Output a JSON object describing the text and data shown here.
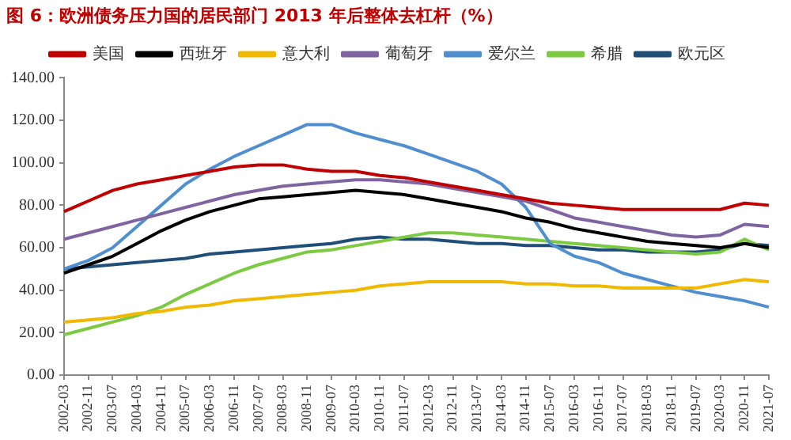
{
  "chart_data": {
    "type": "line",
    "title": "图 6：欧洲债务压力国的居民部门 2013 年后整体去杠杆（%）",
    "categories": [
      "2002-03",
      "2002-11",
      "2003-07",
      "2004-03",
      "2004-11",
      "2005-07",
      "2006-03",
      "2006-11",
      "2007-07",
      "2008-03",
      "2008-11",
      "2009-07",
      "2010-03",
      "2010-11",
      "2011-07",
      "2012-03",
      "2012-11",
      "2013-07",
      "2014-03",
      "2014-11",
      "2015-07",
      "2016-03",
      "2016-11",
      "2017-07",
      "2018-03",
      "2018-11",
      "2019-07",
      "2020-03",
      "2020-11",
      "2021-07"
    ],
    "series": [
      {
        "name": "美国",
        "color": "#c00000",
        "values": [
          77,
          82,
          87,
          90,
          92,
          94,
          96,
          98,
          99,
          99,
          97,
          96,
          96,
          94,
          93,
          91,
          89,
          87,
          85,
          83,
          81,
          80,
          79,
          78,
          78,
          78,
          78,
          78,
          81,
          80
        ]
      },
      {
        "name": "西班牙",
        "color": "#000000",
        "values": [
          48,
          52,
          56,
          62,
          68,
          73,
          77,
          80,
          83,
          84,
          85,
          86,
          87,
          86,
          85,
          83,
          81,
          79,
          77,
          74,
          72,
          69,
          67,
          65,
          63,
          62,
          61,
          60,
          62,
          60
        ]
      },
      {
        "name": "意大利",
        "color": "#f0b800",
        "values": [
          25,
          26,
          27,
          29,
          30,
          32,
          33,
          35,
          36,
          37,
          38,
          39,
          40,
          42,
          43,
          44,
          44,
          44,
          44,
          43,
          43,
          42,
          42,
          41,
          41,
          41,
          41,
          43,
          45,
          44
        ]
      },
      {
        "name": "葡萄牙",
        "color": "#8064a2",
        "values": [
          64,
          67,
          70,
          73,
          76,
          79,
          82,
          85,
          87,
          89,
          90,
          91,
          92,
          92,
          91,
          90,
          88,
          86,
          84,
          82,
          78,
          74,
          72,
          70,
          68,
          66,
          65,
          66,
          71,
          70
        ]
      },
      {
        "name": "爱尔兰",
        "color": "#4f8fcf",
        "values": [
          50,
          54,
          60,
          70,
          80,
          90,
          97,
          103,
          108,
          113,
          118,
          118,
          114,
          111,
          108,
          104,
          100,
          96,
          90,
          79,
          62,
          56,
          53,
          48,
          45,
          42,
          39,
          37,
          35,
          32
        ]
      },
      {
        "name": "希腊",
        "color": "#7cc942",
        "values": [
          19,
          22,
          25,
          28,
          32,
          38,
          43,
          48,
          52,
          55,
          58,
          59,
          61,
          63,
          65,
          67,
          67,
          66,
          65,
          64,
          63,
          62,
          61,
          60,
          59,
          58,
          57,
          58,
          64,
          59
        ]
      },
      {
        "name": "欧元区",
        "color": "#1f4e79",
        "values": [
          50,
          51,
          52,
          53,
          54,
          55,
          57,
          58,
          59,
          60,
          61,
          62,
          64,
          65,
          64,
          64,
          63,
          62,
          62,
          61,
          61,
          60,
          59,
          59,
          58,
          58,
          58,
          59,
          62,
          61
        ]
      }
    ],
    "ylim": [
      0,
      140
    ],
    "yticks": [
      {
        "value": 0,
        "label": "0.00"
      },
      {
        "value": 20,
        "label": "20.00"
      },
      {
        "value": 40,
        "label": "40.00"
      },
      {
        "value": 60,
        "label": "60.00"
      },
      {
        "value": 80,
        "label": "80.00"
      },
      {
        "value": 100,
        "label": "100.00"
      },
      {
        "value": 120,
        "label": "120.00"
      },
      {
        "value": 140,
        "label": "140.00"
      }
    ],
    "grid": false,
    "legend": "top",
    "marker": "none",
    "line_style": "solid"
  }
}
